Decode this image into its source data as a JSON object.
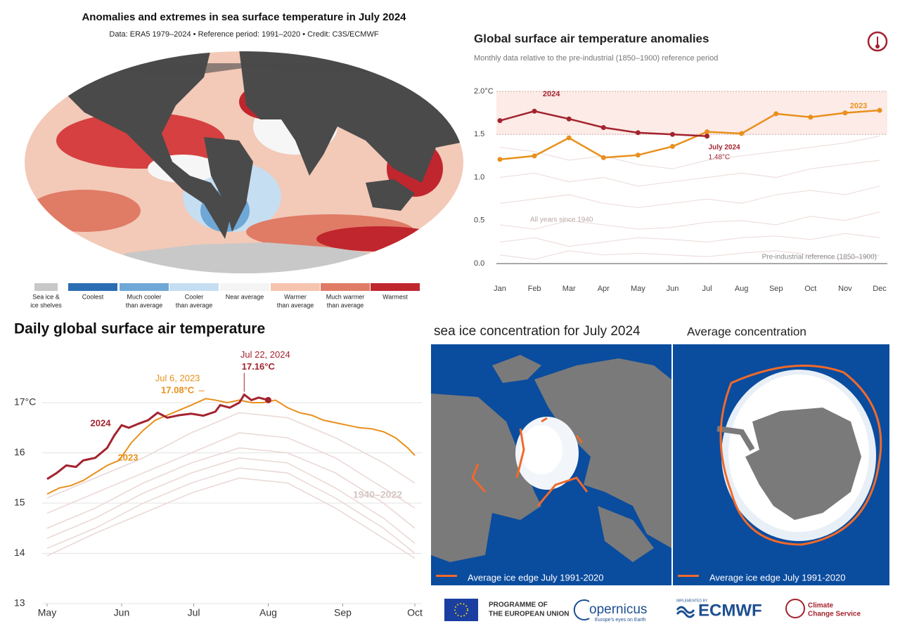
{
  "chart_data": [
    {
      "type": "map",
      "title": "Anomalies and extremes in sea surface temperature in July 2024",
      "subtitle": "Data: ERA5 1979–2024 • Reference period: 1991–2020 • Credit: C3S/ECMWF",
      "legend": [
        {
          "label": [
            "Sea ice &",
            "ice shelves"
          ],
          "color": "#c8c8c8"
        },
        {
          "label": [
            "Coolest"
          ],
          "color": "#2a6db3"
        },
        {
          "label": [
            "Much cooler",
            "than average"
          ],
          "color": "#6fa8d6"
        },
        {
          "label": [
            "Cooler",
            "than average"
          ],
          "color": "#c6def1"
        },
        {
          "label": [
            "Near average"
          ],
          "color": "#f4f4f4"
        },
        {
          "label": [
            "Warmer",
            "than average"
          ],
          "color": "#f6c4ae"
        },
        {
          "label": [
            "Much warmer",
            "than average"
          ],
          "color": "#e07b66"
        },
        {
          "label": [
            "Warmest"
          ],
          "color": "#c0262d"
        }
      ]
    },
    {
      "type": "line",
      "title": "Global surface air temperature anomalies",
      "subtitle": "Monthly data relative to the pre-industrial (1850–1900) reference period",
      "categories": [
        "Jan",
        "Feb",
        "Mar",
        "Apr",
        "May",
        "Jun",
        "Jul",
        "Aug",
        "Sep",
        "Oct",
        "Nov",
        "Dec"
      ],
      "series": [
        {
          "name": "2024",
          "color": "#a3232e",
          "values": [
            1.66,
            1.77,
            1.68,
            1.58,
            1.52,
            1.5,
            1.48,
            null,
            null,
            null,
            null,
            null
          ],
          "value_labels": [
            null,
            null,
            null,
            null,
            null,
            null,
            "1.48°C",
            null,
            null,
            null,
            null,
            null
          ]
        },
        {
          "name": "2023",
          "color": "#e8901c",
          "values": [
            1.21,
            1.25,
            1.46,
            1.23,
            1.26,
            1.36,
            1.53,
            1.51,
            1.74,
            1.7,
            1.75,
            1.78
          ]
        }
      ],
      "background_series": [
        {
          "values": [
            1.35,
            1.3,
            1.2,
            1.25,
            1.15,
            1.1,
            1.2,
            1.25,
            1.3,
            1.35,
            1.4,
            1.48
          ]
        },
        {
          "values": [
            1.0,
            1.05,
            0.95,
            1.0,
            0.9,
            0.95,
            1.0,
            1.05,
            1.0,
            1.1,
            1.15,
            1.2
          ]
        },
        {
          "values": [
            0.7,
            0.75,
            0.8,
            0.7,
            0.65,
            0.7,
            0.75,
            0.7,
            0.8,
            0.85,
            0.8,
            0.9
          ]
        },
        {
          "values": [
            0.45,
            0.4,
            0.5,
            0.45,
            0.4,
            0.42,
            0.48,
            0.5,
            0.45,
            0.55,
            0.5,
            0.6
          ]
        },
        {
          "values": [
            0.25,
            0.3,
            0.2,
            0.25,
            0.3,
            0.28,
            0.25,
            0.3,
            0.32,
            0.28,
            0.35,
            0.3
          ]
        },
        {
          "values": [
            0.1,
            0.05,
            0.15,
            0.1,
            0.12,
            0.1,
            0.08,
            0.12,
            0.15,
            0.1,
            0.05,
            0.1
          ]
        }
      ],
      "background_color": "#ead9d6",
      "band": [
        1.5,
        2.0
      ],
      "band_color": "#fcebe7",
      "ylim": [
        -0.15,
        2.0
      ],
      "yticks": [
        {
          "value": 0,
          "label": "0.0"
        },
        0.5,
        {
          "value": 1,
          "label": "1.0"
        },
        1.5,
        {
          "value": 2,
          "label": "2.0°C"
        }
      ],
      "annotations": [
        "July 2024",
        "All years since 1940",
        "Pre-industrial reference (1850–1900)"
      ]
    },
    {
      "type": "line",
      "title": "Daily global surface air temperature",
      "series": [
        {
          "name": "2024",
          "color": "#a3232e",
          "x": [
            0,
            4,
            8,
            12,
            15,
            20,
            25,
            28,
            31,
            34,
            38,
            42,
            46,
            50,
            55,
            60,
            65,
            70,
            72,
            76,
            80,
            82,
            85,
            88,
            92
          ],
          "values": [
            15.48,
            15.6,
            15.75,
            15.72,
            15.85,
            15.9,
            16.1,
            16.35,
            16.55,
            16.5,
            16.58,
            16.65,
            16.8,
            16.7,
            16.75,
            16.78,
            16.74,
            16.82,
            16.95,
            16.9,
            17.0,
            17.16,
            17.05,
            17.1,
            17.05
          ],
          "value_labels": [
            null,
            null,
            null,
            null,
            null,
            null,
            null,
            null,
            null,
            null,
            null,
            null,
            null,
            null,
            null,
            null,
            null,
            null,
            null,
            null,
            null,
            "17.16°C",
            null,
            null,
            null
          ]
        },
        {
          "name": "2023",
          "color": "#e8901c",
          "x": [
            0,
            5,
            10,
            15,
            20,
            25,
            30,
            35,
            40,
            45,
            50,
            55,
            60,
            66,
            70,
            75,
            80,
            85,
            90,
            95,
            100,
            105,
            110,
            115,
            120,
            125,
            130,
            135,
            140,
            145,
            150,
            153
          ],
          "values": [
            15.18,
            15.3,
            15.35,
            15.45,
            15.6,
            15.75,
            15.85,
            16.2,
            16.45,
            16.65,
            16.75,
            16.85,
            16.95,
            17.08,
            17.05,
            17.0,
            17.05,
            17.0,
            17.0,
            17.05,
            16.9,
            16.8,
            16.75,
            16.65,
            16.6,
            16.55,
            16.5,
            16.48,
            16.42,
            16.3,
            16.1,
            15.95
          ],
          "value_labels": [
            null,
            null,
            null,
            null,
            null,
            null,
            null,
            null,
            null,
            null,
            null,
            null,
            null,
            "17.08°C",
            null,
            null,
            null,
            null,
            null,
            null,
            null,
            null,
            null,
            null,
            null,
            null,
            null,
            null,
            null,
            null,
            null,
            null
          ]
        }
      ],
      "background_x": [
        0,
        20,
        40,
        60,
        80,
        100,
        120,
        140,
        153
      ],
      "background_series": [
        {
          "values": [
            15.1,
            15.5,
            15.9,
            16.4,
            16.8,
            16.7,
            16.3,
            15.8,
            15.4
          ]
        },
        {
          "values": [
            14.8,
            15.2,
            15.6,
            16.0,
            16.4,
            16.3,
            15.9,
            15.3,
            14.9
          ]
        },
        {
          "values": [
            14.5,
            14.9,
            15.4,
            15.8,
            16.1,
            16.0,
            15.6,
            15.0,
            14.5
          ]
        },
        {
          "values": [
            14.3,
            14.7,
            15.2,
            15.6,
            15.9,
            15.8,
            15.3,
            14.7,
            14.2
          ]
        },
        {
          "values": [
            14.1,
            14.5,
            15.0,
            15.4,
            15.7,
            15.6,
            15.1,
            14.5,
            14.0
          ]
        },
        {
          "values": [
            13.95,
            14.4,
            14.8,
            15.2,
            15.5,
            15.4,
            14.9,
            14.3,
            13.9
          ]
        }
      ],
      "background_color": "#e9d7d4",
      "background_label": "1940–2022",
      "xlim": [
        0,
        153
      ],
      "xticks": [
        {
          "value": 0,
          "label": "May"
        },
        {
          "value": 31,
          "label": "Jun"
        },
        {
          "value": 61,
          "label": "Jul"
        },
        {
          "value": 92,
          "label": "Aug"
        },
        {
          "value": 123,
          "label": "Sep"
        },
        {
          "value": 153,
          "label": "Oct"
        }
      ],
      "ylim": [
        13,
        17.8
      ],
      "yticks": [
        13,
        14,
        15,
        16,
        {
          "value": 17,
          "label": "17°C"
        }
      ],
      "annotations": [
        "Jul 22, 2024",
        "Jul 6, 2023"
      ]
    },
    {
      "type": "map",
      "titles": [
        "sea ice concentration for July 2024",
        "Average concentration"
      ],
      "legend": "Average ice edge July 1991-2020",
      "edge_color": "#f06a2a"
    }
  ],
  "footer": [
    "PROGRAMME OF",
    "THE EUROPEAN UNION",
    "opernicus",
    "Europe's eyes on Earth",
    "IMPLEMENTED BY",
    "ECMWF",
    "Climate",
    "Change Service"
  ]
}
